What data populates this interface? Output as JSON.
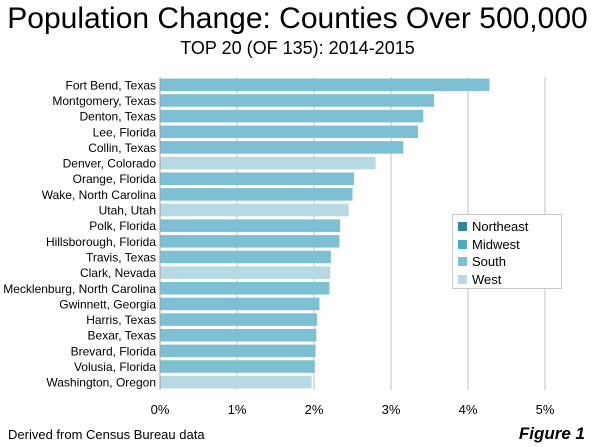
{
  "title": "Population Change: Counties Over 500,000",
  "subtitle": "TOP 20 (OF 135): 2014-2015",
  "source": "Derived from Census Bureau data",
  "figure_label": "Figure 1",
  "colors": {
    "Northeast": "#31859c",
    "Midwest": "#4bacc6",
    "South": "#7dbfd3",
    "West": "#b7d9e4",
    "grid": "#c0c0c0"
  },
  "chart_data": {
    "type": "bar",
    "orientation": "horizontal",
    "title": "Population Change: Counties Over 500,000",
    "subtitle": "TOP 20 (OF 135): 2014-2015",
    "xlim": [
      0,
      5
    ],
    "x_ticks": [
      "0%",
      "1%",
      "2%",
      "3%",
      "4%",
      "5%"
    ],
    "grid": true,
    "legend_position": "right",
    "legend": [
      "Northeast",
      "Midwest",
      "South",
      "West"
    ],
    "bars": [
      {
        "label": "Fort Bend, Texas",
        "value": 4.28,
        "region": "South"
      },
      {
        "label": "Montgomery, Texas",
        "value": 3.56,
        "region": "South"
      },
      {
        "label": "Denton, Texas",
        "value": 3.42,
        "region": "South"
      },
      {
        "label": "Lee, Florida",
        "value": 3.35,
        "region": "South"
      },
      {
        "label": "Collin, Texas",
        "value": 3.16,
        "region": "South"
      },
      {
        "label": "Denver, Colorado",
        "value": 2.8,
        "region": "West"
      },
      {
        "label": "Orange, Florida",
        "value": 2.52,
        "region": "South"
      },
      {
        "label": "Wake, North Carolina",
        "value": 2.5,
        "region": "South"
      },
      {
        "label": "Utah, Utah",
        "value": 2.45,
        "region": "West"
      },
      {
        "label": "Polk, Florida",
        "value": 2.34,
        "region": "South"
      },
      {
        "label": "Hillsborough, Florida",
        "value": 2.33,
        "region": "South"
      },
      {
        "label": "Travis, Texas",
        "value": 2.22,
        "region": "South"
      },
      {
        "label": "Clark, Nevada",
        "value": 2.21,
        "region": "West"
      },
      {
        "label": "Mecklenburg, North Carolina",
        "value": 2.2,
        "region": "South"
      },
      {
        "label": "Gwinnett, Georgia",
        "value": 2.07,
        "region": "South"
      },
      {
        "label": "Harris, Texas",
        "value": 2.04,
        "region": "South"
      },
      {
        "label": "Bexar, Texas",
        "value": 2.03,
        "region": "South"
      },
      {
        "label": "Brevard, Florida",
        "value": 2.02,
        "region": "South"
      },
      {
        "label": "Volusia, Florida",
        "value": 2.01,
        "region": "South"
      },
      {
        "label": "Washington, Oregon",
        "value": 1.97,
        "region": "West"
      }
    ]
  }
}
